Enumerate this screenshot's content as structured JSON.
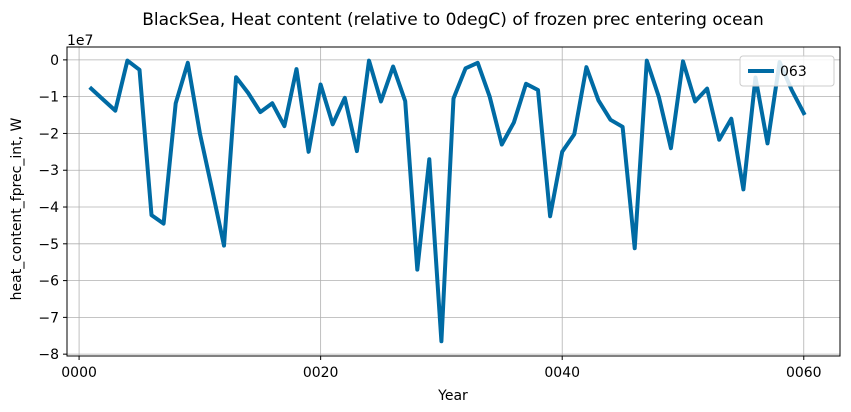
{
  "chart_data": {
    "type": "line",
    "title": "BlackSea, Heat content (relative to 0degC) of frozen prec entering ocean",
    "xlabel": "Year",
    "ylabel": "heat_content_fprec_int, W",
    "y_exponent_label": "1e7",
    "xlim": [
      -1,
      63
    ],
    "ylim": [
      -8.05,
      0.35
    ],
    "y_scale": 10000000,
    "x_ticks": [
      0,
      20,
      40,
      60
    ],
    "x_tick_labels": [
      "0000",
      "0020",
      "0040",
      "0060"
    ],
    "y_ticks": [
      0,
      -1,
      -2,
      -3,
      -4,
      -5,
      -6,
      -7,
      -8
    ],
    "y_tick_labels": [
      "0",
      "−1",
      "−2",
      "−3",
      "−4",
      "−5",
      "−6",
      "−7",
      "−8"
    ],
    "grid": true,
    "legend_position": "top-right",
    "series": [
      {
        "name": "063",
        "color": "#006ba4",
        "x": [
          1,
          2,
          3,
          4,
          5,
          6,
          7,
          8,
          9,
          10,
          11,
          12,
          13,
          14,
          15,
          16,
          17,
          18,
          19,
          20,
          21,
          22,
          23,
          24,
          25,
          26,
          27,
          28,
          29,
          30,
          31,
          32,
          33,
          34,
          35,
          36,
          37,
          38,
          39,
          40,
          41,
          42,
          43,
          44,
          45,
          46,
          47,
          48,
          49,
          50,
          51,
          52,
          53,
          54,
          55,
          56,
          57,
          58,
          59,
          60
        ],
        "y": [
          -0.78,
          -1.08,
          -1.38,
          -0.02,
          -0.27,
          -4.22,
          -4.45,
          -1.18,
          -0.08,
          -2.0,
          -3.5,
          -5.05,
          -0.47,
          -0.9,
          -1.42,
          -1.18,
          -1.8,
          -0.25,
          -2.5,
          -0.67,
          -1.75,
          -1.03,
          -2.48,
          -0.02,
          -1.13,
          -0.18,
          -1.12,
          -5.7,
          -2.7,
          -7.65,
          -1.05,
          -0.23,
          -0.08,
          -1.0,
          -2.3,
          -1.7,
          -0.65,
          -0.82,
          -4.25,
          -2.5,
          -2.02,
          -0.2,
          -1.1,
          -1.63,
          -1.82,
          -5.12,
          -0.02,
          -1.0,
          -2.4,
          -0.04,
          -1.13,
          -0.78,
          -2.17,
          -1.6,
          -3.52,
          -0.48,
          -2.27,
          -0.06,
          -0.82,
          -1.45
        ]
      }
    ]
  }
}
